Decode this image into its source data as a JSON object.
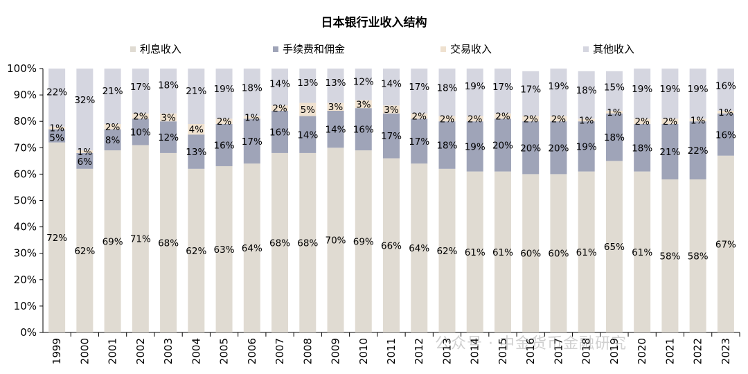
{
  "chart_data": {
    "type": "bar",
    "stacked": true,
    "title": "日本银行业收入结构",
    "categories": [
      "1999",
      "2000",
      "2001",
      "2002",
      "2003",
      "2004",
      "2005",
      "2006",
      "2007",
      "2008",
      "2009",
      "2010",
      "2011",
      "2012",
      "2013",
      "2014",
      "2015",
      "2016",
      "2017",
      "2018",
      "2019",
      "2020",
      "2021",
      "2022",
      "2023"
    ],
    "series": [
      {
        "name": "利息收入",
        "color": "#e0dbd2",
        "values": [
          72,
          62,
          69,
          71,
          68,
          62,
          63,
          64,
          68,
          68,
          70,
          69,
          66,
          64,
          62,
          61,
          61,
          60,
          60,
          61,
          65,
          61,
          58,
          58,
          67
        ],
        "labels": [
          "72%",
          "62%",
          "69%",
          "71%",
          "68%",
          "62%",
          "63%",
          "64%",
          "68%",
          "68%",
          "70%",
          "69%",
          "66%",
          "64%",
          "62%",
          "61%",
          "61%",
          "60%",
          "60%",
          "61%",
          "65%",
          "61%",
          "58%",
          "58%",
          "67%"
        ]
      },
      {
        "name": "手续费和佣金",
        "color": "#9fa4b8",
        "values": [
          5,
          6,
          8,
          10,
          12,
          13,
          16,
          17,
          16,
          14,
          14,
          16,
          17,
          17,
          18,
          19,
          20,
          20,
          20,
          19,
          18,
          18,
          21,
          22,
          16
        ],
        "labels": [
          "5%",
          "6%",
          "8%",
          "10%",
          "12%",
          "13%",
          "16%",
          "17%",
          "16%",
          "14%",
          "14%",
          "16%",
          "17%",
          "17%",
          "18%",
          "19%",
          "20%",
          "20%",
          "20%",
          "19%",
          "18%",
          "18%",
          "21%",
          "22%",
          "16%"
        ]
      },
      {
        "name": "交易收入",
        "color": "#efe1cf",
        "values": [
          1,
          1,
          2,
          2,
          3,
          4,
          2,
          1,
          2,
          5,
          3,
          3,
          3,
          2,
          2,
          2,
          2,
          2,
          2,
          1,
          1,
          2,
          2,
          1,
          1
        ],
        "labels": [
          "1%",
          "1%",
          "2%",
          "2%",
          "3%",
          "4%",
          "2%",
          "1%",
          "2%",
          "5%",
          "3%",
          "3%",
          "3%",
          "2%",
          "2%",
          "2%",
          "2%",
          "2%",
          "2%",
          "1%",
          "1%",
          "2%",
          "2%",
          "1%",
          "1%"
        ]
      },
      {
        "name": "其他收入",
        "color": "#d5d6e0",
        "values": [
          22,
          32,
          21,
          17,
          18,
          21,
          19,
          18,
          14,
          13,
          13,
          12,
          14,
          17,
          18,
          19,
          17,
          17,
          19,
          18,
          15,
          19,
          19,
          19,
          16
        ],
        "labels": [
          "22%",
          "32%",
          "21%",
          "17%",
          "18%",
          "21%",
          "19%",
          "18%",
          "14%",
          "13%",
          "13%",
          "12%",
          "14%",
          "17%",
          "18%",
          "19%",
          "17%",
          "17%",
          "19%",
          "18%",
          "15%",
          "19%",
          "19%",
          "19%",
          "16%"
        ]
      }
    ],
    "ylim": [
      0,
      100
    ],
    "yticks": [
      "0%",
      "10%",
      "20%",
      "30%",
      "40%",
      "50%",
      "60%",
      "70%",
      "80%",
      "90%",
      "100%"
    ],
    "legend_position": "top",
    "grid": false
  },
  "watermark": "公众号 · 中金货币金融研究"
}
